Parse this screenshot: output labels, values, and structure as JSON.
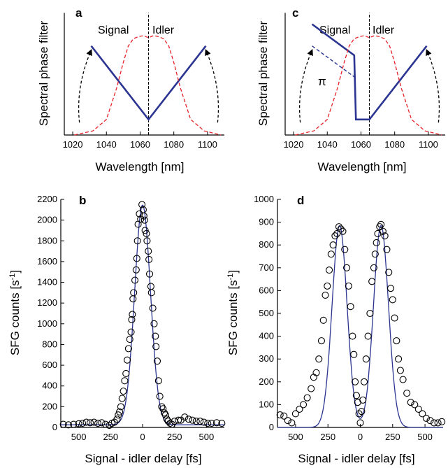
{
  "chart_data": [
    {
      "panel": "a",
      "type": "line",
      "xlabel": "Wavelength [nm]",
      "ylabel": "Spectral phase filter",
      "xlim": [
        1015,
        1110
      ],
      "x_ticks": [
        1020,
        1040,
        1060,
        1080,
        1100
      ],
      "header_left": "Signal",
      "header_right": "Idler",
      "center_line_x": 1065,
      "series": [
        {
          "style": "solid-blue",
          "x": [
            1031,
            1065,
            1099
          ],
          "y": [
            0.86,
            0.15,
            0.86
          ]
        },
        {
          "style": "dashed-red",
          "x": [
            1021,
            1032,
            1040,
            1046,
            1050,
            1053,
            1056,
            1059,
            1062,
            1065,
            1068,
            1071,
            1074,
            1077,
            1080,
            1084,
            1090,
            1098,
            1108
          ],
          "y": [
            0.0,
            0.04,
            0.15,
            0.45,
            0.7,
            0.86,
            0.93,
            0.95,
            0.96,
            0.94,
            0.96,
            0.95,
            0.93,
            0.86,
            0.7,
            0.45,
            0.15,
            0.04,
            0.0
          ]
        },
        {
          "style": "dashed-arrow",
          "x": [
            1024,
            1031
          ],
          "y": [
            0.12,
            0.82
          ]
        },
        {
          "style": "dashed-arrow",
          "x": [
            1106,
            1099
          ],
          "y": [
            0.12,
            0.82
          ]
        }
      ]
    },
    {
      "panel": "c",
      "type": "line",
      "xlabel": "Wavelength [nm]",
      "ylabel": "Spectral phase filter",
      "xlim": [
        1015,
        1110
      ],
      "x_ticks": [
        1020,
        1040,
        1060,
        1080,
        1100
      ],
      "header_left": "Signal",
      "header_right": "Idler",
      "center_line_x": 1065,
      "annotation": "π",
      "series": [
        {
          "style": "solid-blue",
          "x": [
            1031,
            1056,
            1057,
            1065,
            1099
          ],
          "y": [
            1.07,
            0.77,
            0.15,
            0.15,
            0.86
          ]
        },
        {
          "style": "dashed-blue",
          "x": [
            1031,
            1057
          ],
          "y": [
            0.86,
            0.55
          ]
        },
        {
          "style": "dashed-red",
          "x": [
            1021,
            1032,
            1040,
            1046,
            1050,
            1053,
            1056,
            1059,
            1062,
            1065,
            1068,
            1071,
            1074,
            1077,
            1080,
            1084,
            1090,
            1098,
            1108
          ],
          "y": [
            0.0,
            0.04,
            0.15,
            0.45,
            0.7,
            0.86,
            0.93,
            0.95,
            0.96,
            0.94,
            0.96,
            0.95,
            0.93,
            0.86,
            0.7,
            0.45,
            0.15,
            0.04,
            0.0
          ]
        },
        {
          "style": "dashed-arrow",
          "x": [
            1024,
            1031
          ],
          "y": [
            0.12,
            0.82
          ]
        },
        {
          "style": "dashed-arrow",
          "x": [
            1106,
            1099
          ],
          "y": [
            0.12,
            0.82
          ]
        }
      ]
    },
    {
      "panel": "b",
      "type": "scatter",
      "xlabel": "Signal - idler delay [fs]",
      "ylabel": "SFG counts [s",
      "ylabel_sup": "-1",
      "ylabel_tail": "]",
      "xlim": [
        -640,
        640
      ],
      "ylim": [
        0,
        2200
      ],
      "x_ticks": [
        -500,
        -250,
        0,
        250,
        500
      ],
      "x_tick_labels": [
        "500",
        "250",
        "0",
        "250",
        "500"
      ],
      "y_ticks": [
        0,
        200,
        400,
        600,
        800,
        1000,
        1200,
        1400,
        1600,
        1800,
        2000,
        2200
      ],
      "fit": {
        "type": "gaussian",
        "amplitude": 2120,
        "center": 0,
        "sigma": 62,
        "baseline": 25
      },
      "points": [
        [
          -620,
          30
        ],
        [
          -580,
          25
        ],
        [
          -540,
          30
        ],
        [
          -500,
          35
        ],
        [
          -470,
          40
        ],
        [
          -440,
          50
        ],
        [
          -410,
          45
        ],
        [
          -380,
          50
        ],
        [
          -350,
          40
        ],
        [
          -320,
          45
        ],
        [
          -290,
          30
        ],
        [
          -260,
          20
        ],
        [
          -240,
          40
        ],
        [
          -220,
          50
        ],
        [
          -200,
          80
        ],
        [
          -190,
          120
        ],
        [
          -180,
          150
        ],
        [
          -170,
          200
        ],
        [
          -160,
          280
        ],
        [
          -150,
          350
        ],
        [
          -140,
          450
        ],
        [
          -130,
          520
        ],
        [
          -120,
          650
        ],
        [
          -110,
          760
        ],
        [
          -100,
          850
        ],
        [
          -90,
          920
        ],
        [
          -85,
          1040
        ],
        [
          -80,
          1090
        ],
        [
          -75,
          1240
        ],
        [
          -70,
          1300
        ],
        [
          -60,
          1420
        ],
        [
          -50,
          1520
        ],
        [
          -45,
          1630
        ],
        [
          -40,
          1800
        ],
        [
          -35,
          1960
        ],
        [
          -25,
          2060
        ],
        [
          -15,
          2010
        ],
        [
          -5,
          2150
        ],
        [
          5,
          2100
        ],
        [
          10,
          2040
        ],
        [
          15,
          2000
        ],
        [
          20,
          1900
        ],
        [
          30,
          1870
        ],
        [
          35,
          1800
        ],
        [
          45,
          1700
        ],
        [
          50,
          1620
        ],
        [
          55,
          1480
        ],
        [
          65,
          1360
        ],
        [
          70,
          1300
        ],
        [
          80,
          1150
        ],
        [
          90,
          1000
        ],
        [
          100,
          880
        ],
        [
          105,
          780
        ],
        [
          115,
          640
        ],
        [
          125,
          450
        ],
        [
          135,
          300
        ],
        [
          150,
          200
        ],
        [
          160,
          180
        ],
        [
          170,
          140
        ],
        [
          180,
          120
        ],
        [
          190,
          80
        ],
        [
          200,
          60
        ],
        [
          215,
          40
        ],
        [
          230,
          30
        ],
        [
          250,
          60
        ],
        [
          280,
          70
        ],
        [
          300,
          70
        ],
        [
          330,
          100
        ],
        [
          360,
          80
        ],
        [
          390,
          70
        ],
        [
          420,
          60
        ],
        [
          450,
          60
        ],
        [
          480,
          50
        ],
        [
          510,
          40
        ],
        [
          540,
          40
        ],
        [
          580,
          45
        ],
        [
          620,
          40
        ]
      ]
    },
    {
      "panel": "d",
      "type": "scatter",
      "xlabel": "Signal - idler delay [fs]",
      "ylabel": "SFG counts [s",
      "ylabel_sup": "-1",
      "ylabel_tail": "]",
      "xlim": [
        -640,
        640
      ],
      "ylim": [
        0,
        1000
      ],
      "x_ticks": [
        -500,
        -250,
        0,
        250,
        500
      ],
      "x_tick_labels": [
        "500",
        "250",
        "0",
        "250",
        "500"
      ],
      "y_ticks": [
        0,
        100,
        200,
        300,
        400,
        500,
        600,
        700,
        800,
        900,
        1000
      ],
      "fit": {
        "type": "double-gaussian",
        "amplitude": 885,
        "centers": [
          -160,
          160
        ],
        "sigma": 58,
        "baseline": 0
      },
      "points": [
        [
          -620,
          55
        ],
        [
          -590,
          50
        ],
        [
          -560,
          30
        ],
        [
          -530,
          20
        ],
        [
          -500,
          60
        ],
        [
          -470,
          80
        ],
        [
          -440,
          100
        ],
        [
          -410,
          130
        ],
        [
          -380,
          170
        ],
        [
          -360,
          220
        ],
        [
          -340,
          240
        ],
        [
          -320,
          300
        ],
        [
          -300,
          380
        ],
        [
          -285,
          470
        ],
        [
          -270,
          580
        ],
        [
          -255,
          620
        ],
        [
          -240,
          690
        ],
        [
          -225,
          760
        ],
        [
          -210,
          800
        ],
        [
          -195,
          840
        ],
        [
          -180,
          850
        ],
        [
          -165,
          880
        ],
        [
          -150,
          870
        ],
        [
          -135,
          860
        ],
        [
          -120,
          780
        ],
        [
          -105,
          700
        ],
        [
          -90,
          620
        ],
        [
          -75,
          530
        ],
        [
          -60,
          400
        ],
        [
          -50,
          320
        ],
        [
          -40,
          200
        ],
        [
          -30,
          140
        ],
        [
          -20,
          110
        ],
        [
          -10,
          60
        ],
        [
          0,
          20
        ],
        [
          10,
          70
        ],
        [
          20,
          120
        ],
        [
          30,
          200
        ],
        [
          45,
          300
        ],
        [
          60,
          400
        ],
        [
          75,
          500
        ],
        [
          90,
          640
        ],
        [
          105,
          700
        ],
        [
          115,
          760
        ],
        [
          125,
          810
        ],
        [
          135,
          850
        ],
        [
          150,
          880
        ],
        [
          160,
          890
        ],
        [
          175,
          860
        ],
        [
          190,
          840
        ],
        [
          205,
          780
        ],
        [
          220,
          680
        ],
        [
          235,
          610
        ],
        [
          250,
          560
        ],
        [
          265,
          480
        ],
        [
          280,
          380
        ],
        [
          295,
          300
        ],
        [
          310,
          250
        ],
        [
          330,
          210
        ],
        [
          360,
          150
        ],
        [
          390,
          110
        ],
        [
          420,
          100
        ],
        [
          450,
          80
        ],
        [
          480,
          60
        ],
        [
          510,
          40
        ],
        [
          540,
          30
        ],
        [
          570,
          20
        ],
        [
          600,
          20
        ],
        [
          630,
          25
        ]
      ]
    }
  ]
}
